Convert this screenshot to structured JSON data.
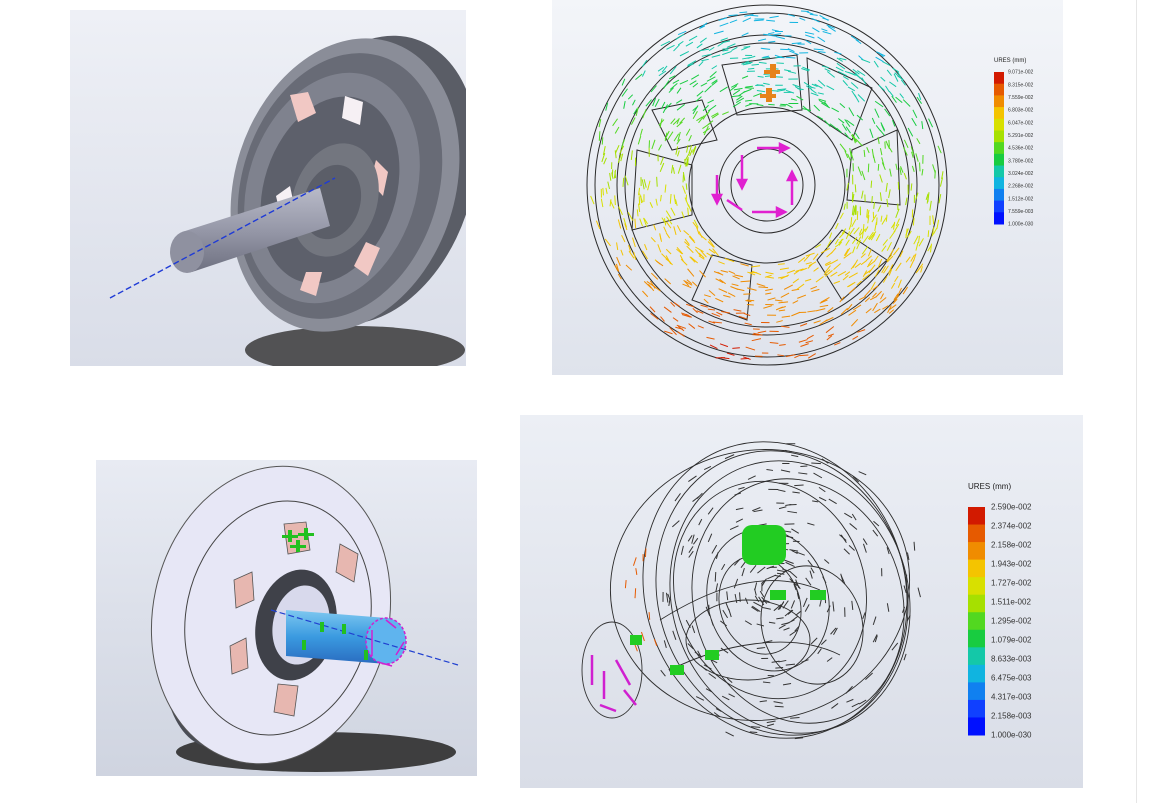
{
  "figures": [
    {
      "id": "wheel-model-iso"
    },
    {
      "id": "displacement-arrows-front",
      "legend": {
        "title": "URES (mm)",
        "labels": [
          "9.071e-002",
          "8.315e-002",
          "7.559e-002",
          "6.803e-002",
          "6.047e-002",
          "5.291e-002",
          "4.536e-002",
          "3.780e-002",
          "3.024e-002",
          "2.268e-002",
          "1.512e-002",
          "7.559e-003",
          "1.000e-030"
        ],
        "colors": [
          "#d21a00",
          "#e65a00",
          "#f08c00",
          "#f4c400",
          "#d8e000",
          "#a6e000",
          "#52d820",
          "#18cc40",
          "#14c8a8",
          "#10b4e0",
          "#1080f0",
          "#1040ff",
          "#0010ff"
        ]
      }
    },
    {
      "id": "wheel-model-loads"
    },
    {
      "id": "displacement-arrows-iso",
      "legend": {
        "title": "URES (mm)",
        "labels": [
          "2.590e-002",
          "2.374e-002",
          "2.158e-002",
          "1.943e-002",
          "1.727e-002",
          "1.511e-002",
          "1.295e-002",
          "1.079e-002",
          "8.633e-003",
          "6.475e-003",
          "4.317e-003",
          "2.158e-003",
          "1.000e-030"
        ],
        "colors": [
          "#d21a00",
          "#e65a00",
          "#f08c00",
          "#f4c400",
          "#d8e000",
          "#a6e000",
          "#52d820",
          "#18cc40",
          "#14c8a8",
          "#10b4e0",
          "#1080f0",
          "#1040ff",
          "#0010ff"
        ]
      }
    }
  ]
}
